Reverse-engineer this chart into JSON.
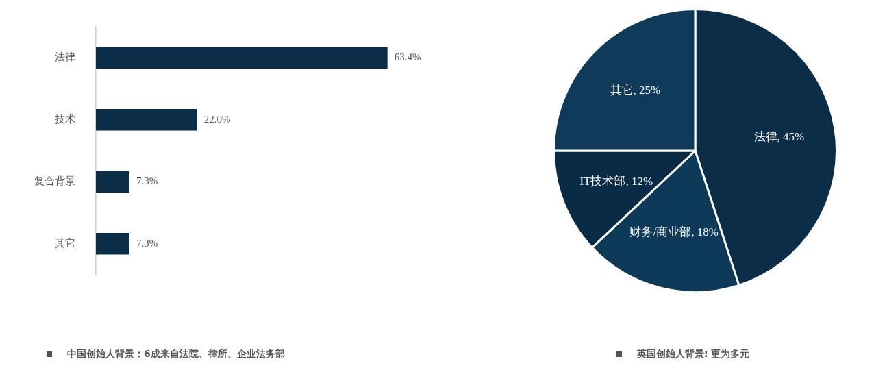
{
  "chart_data": [
    {
      "type": "bar",
      "orientation": "horizontal",
      "categories": [
        "法律",
        "技术",
        "复合背景",
        "其它"
      ],
      "values": [
        63.4,
        22.0,
        7.3,
        7.3
      ],
      "value_labels": [
        "63.4%",
        "22.0%",
        "7.3%",
        "7.3%"
      ],
      "color": "#0b2d48",
      "legend": false,
      "grid": false,
      "annotations": [
        "中国创始人背景：6成来自法院、律所、企业法务部"
      ]
    },
    {
      "type": "pie",
      "categories": [
        "法律",
        "财务/商业部",
        "IT技术部",
        "其它"
      ],
      "values": [
        45,
        18,
        12,
        25
      ],
      "value_labels": [
        "45%",
        "18%",
        "12%",
        "25%"
      ],
      "colors": [
        "#0b2d48",
        "#0e3a5a",
        "#0a2b45",
        "#0f3a5a"
      ],
      "legend": false,
      "annotations": [
        "英国创始人背景: 更为多元"
      ]
    }
  ]
}
